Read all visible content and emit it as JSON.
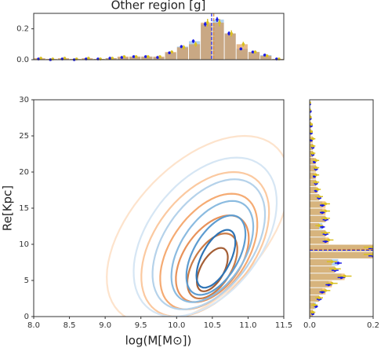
{
  "chart_data": [
    {
      "type": "histogram",
      "title": "Other region [g]",
      "bins": [
        8,
        8.167,
        8.333,
        8.5,
        8.667,
        8.833,
        9,
        9.167,
        9.333,
        9.5,
        9.667,
        9.833,
        10,
        10.167,
        10.333,
        10.5,
        10.667,
        10.833,
        11,
        11.167,
        11.333,
        11.5
      ],
      "series": [
        {
          "color": "#7fb2e5",
          "error_color": "#1a1ae6",
          "values": [
            0.005,
            0,
            0.005,
            0,
            0.005,
            0.005,
            0.01,
            0.015,
            0.02,
            0.02,
            0.015,
            0.045,
            0.085,
            0.12,
            0.23,
            0.26,
            0.17,
            0.07,
            0.05,
            0.03,
            0.005
          ],
          "errors": [
            0.003,
            0,
            0.003,
            0,
            0.003,
            0.003,
            0.004,
            0.005,
            0.005,
            0.005,
            0.005,
            0.008,
            0.01,
            0.012,
            0.015,
            0.016,
            0.013,
            0.009,
            0.007,
            0.006,
            0.003
          ]
        },
        {
          "color": "#d98c3c",
          "error_color": "#d9c020",
          "values": [
            0.01,
            0.005,
            0.01,
            0.005,
            0.01,
            0.005,
            0.01,
            0.02,
            0.02,
            0.02,
            0.02,
            0.05,
            0.08,
            0.1,
            0.24,
            0.24,
            0.17,
            0.1,
            0.05,
            0.025,
            0.005
          ],
          "errors": [
            0.004,
            0.003,
            0.004,
            0.003,
            0.004,
            0.003,
            0.004,
            0.006,
            0.006,
            0.006,
            0.006,
            0.01,
            0.014,
            0.016,
            0.024,
            0.024,
            0.02,
            0.016,
            0.01,
            0.008,
            0.003
          ]
        }
      ],
      "lines": [
        {
          "value": 10.49,
          "color": "#1a1ae6"
        },
        {
          "value": 10.52,
          "color": "#d98c3c"
        }
      ],
      "xlim": [
        8,
        11.5
      ],
      "ylim": [
        0,
        0.3
      ],
      "yticks": [
        {
          "value": 0,
          "label": "0.0"
        },
        {
          "value": 0.2,
          "label": "0.2"
        }
      ]
    },
    {
      "type": "contour",
      "xlabel": "log(M[M⊙])",
      "ylabel": "Re[Kpc]",
      "xlim": [
        8,
        11.5
      ],
      "ylim": [
        0,
        30
      ],
      "xticks": [
        {
          "value": 8,
          "label": "8.0"
        },
        8.5,
        {
          "value": 9,
          "label": "9.0"
        },
        9.5,
        {
          "value": 10,
          "label": "10.0"
        },
        10.5,
        {
          "value": 11,
          "label": "11.0"
        },
        11.5
      ],
      "yticks": [
        0,
        5,
        10,
        15,
        20,
        25,
        30
      ],
      "series": [
        {
          "levels": [
            {
              "cx": 10.3,
              "cy": 12,
              "rx": 1.1,
              "ry": 13,
              "shear": 0.05,
              "color": "#fde3cc"
            },
            {
              "cx": 10.4,
              "cy": 10,
              "rx": 0.8,
              "ry": 10,
              "shear": 0.04,
              "color": "#fbc9a0"
            },
            {
              "cx": 10.45,
              "cy": 9,
              "rx": 0.6,
              "ry": 8,
              "shear": 0.04,
              "color": "#f5ab73"
            },
            {
              "cx": 10.5,
              "cy": 8,
              "rx": 0.45,
              "ry": 6,
              "shear": 0.04,
              "color": "#e8925a"
            },
            {
              "cx": 10.5,
              "cy": 7,
              "rx": 0.3,
              "ry": 4.5,
              "shear": 0.04,
              "color": "#c97a45"
            },
            {
              "cx": 10.5,
              "cy": 6.5,
              "rx": 0.18,
              "ry": 3,
              "shear": 0.04,
              "color": "#a45e35"
            }
          ]
        },
        {
          "levels": [
            {
              "cx": 10.4,
              "cy": 11,
              "rx": 0.9,
              "ry": 11,
              "shear": 0.04,
              "color": "#d6e6f4"
            },
            {
              "cx": 10.45,
              "cy": 10,
              "rx": 0.7,
              "ry": 9,
              "shear": 0.04,
              "color": "#b5d2ea"
            },
            {
              "cx": 10.5,
              "cy": 9,
              "rx": 0.5,
              "ry": 7,
              "shear": 0.04,
              "color": "#8bbbe0"
            },
            {
              "cx": 10.55,
              "cy": 8.5,
              "rx": 0.35,
              "ry": 5.5,
              "shear": 0.04,
              "color": "#5d9cd0"
            },
            {
              "cx": 10.55,
              "cy": 8,
              "rx": 0.22,
              "ry": 4,
              "shear": 0.04,
              "color": "#2e74b5"
            }
          ]
        }
      ]
    },
    {
      "type": "histogram",
      "orientation": "horizontal",
      "bins": [
        0,
        1,
        2,
        3,
        4,
        5,
        6,
        7,
        8,
        9,
        10,
        11,
        12,
        13,
        14,
        15,
        16,
        17,
        18,
        19,
        20,
        21,
        22,
        23,
        24,
        25,
        26,
        27,
        28,
        29,
        30
      ],
      "series": [
        {
          "color": "#7fb2e5",
          "error_color": "#1a1ae6",
          "values": [
            0.01,
            0.02,
            0.03,
            0.04,
            0.06,
            0.1,
            0.08,
            0.09,
            0.2,
            0.2,
            0.05,
            0.05,
            0.04,
            0.05,
            0.04,
            0.04,
            0.03,
            0.02,
            0.02,
            0.015,
            0.02,
            0.015,
            0.01,
            0.01,
            0.005,
            0.005,
            0.005,
            0.002,
            0.002,
            0
          ],
          "errors": [
            0.005,
            0.006,
            0.008,
            0.009,
            0.01,
            0.012,
            0.011,
            0.011,
            0.015,
            0.015,
            0.009,
            0.009,
            0.008,
            0.009,
            0.008,
            0.008,
            0.007,
            0.006,
            0.006,
            0.005,
            0.006,
            0.005,
            0.005,
            0.005,
            0.003,
            0.003,
            0.003,
            0.002,
            0.002,
            0
          ]
        },
        {
          "color": "#f0a030",
          "error_color": "#d9c020",
          "values": [
            0.01,
            0.015,
            0.03,
            0.05,
            0.07,
            0.11,
            0.08,
            0.07,
            0.2,
            0.2,
            0.06,
            0.05,
            0.03,
            0.05,
            0.05,
            0.05,
            0.03,
            0.025,
            0.02,
            0.02,
            0.02,
            0.02,
            0.01,
            0.01,
            0.01,
            0.005,
            0.005,
            0.002,
            0,
            0
          ],
          "errors": [
            0.008,
            0.01,
            0.012,
            0.015,
            0.018,
            0.022,
            0.018,
            0.016,
            0.03,
            0.03,
            0.015,
            0.014,
            0.012,
            0.014,
            0.014,
            0.014,
            0.012,
            0.01,
            0.01,
            0.01,
            0.01,
            0.01,
            0.008,
            0.008,
            0.008,
            0.005,
            0.005,
            0.003,
            0,
            0
          ]
        }
      ],
      "lines": [
        {
          "value": 9.2,
          "color": "#1a1ae6"
        },
        {
          "value": 9.3,
          "color": "#d98c3c"
        }
      ],
      "xlim": [
        0,
        0.2
      ],
      "ylim": [
        0,
        30
      ],
      "xticks": [
        {
          "value": 0,
          "label": "0.0"
        },
        {
          "value": 0.2,
          "label": "0.2"
        }
      ]
    }
  ]
}
